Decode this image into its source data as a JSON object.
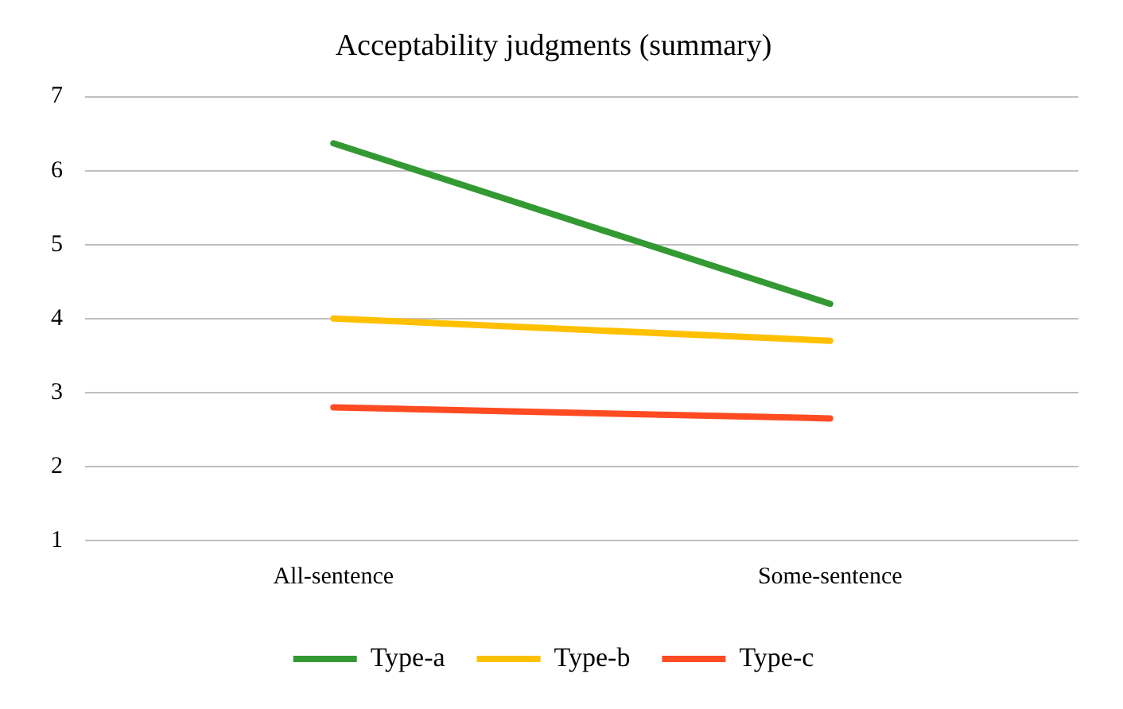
{
  "chart_data": {
    "type": "line",
    "title": "Acceptability judgments (summary)",
    "categories": [
      "All-sentence",
      "Some-sentence"
    ],
    "series": [
      {
        "name": "Type-a",
        "color": "#339933",
        "values": [
          6.37,
          4.2
        ]
      },
      {
        "name": "Type-b",
        "color": "#ffc000",
        "values": [
          4.0,
          3.7
        ]
      },
      {
        "name": "Type-c",
        "color": "#ff4b22",
        "values": [
          2.8,
          2.65
        ]
      }
    ],
    "ylim": [
      1,
      7
    ],
    "yticks": [
      1,
      2,
      3,
      4,
      5,
      6,
      7
    ],
    "grid": "y",
    "legend": "bottom",
    "marker": "none",
    "line_style": "solid"
  }
}
